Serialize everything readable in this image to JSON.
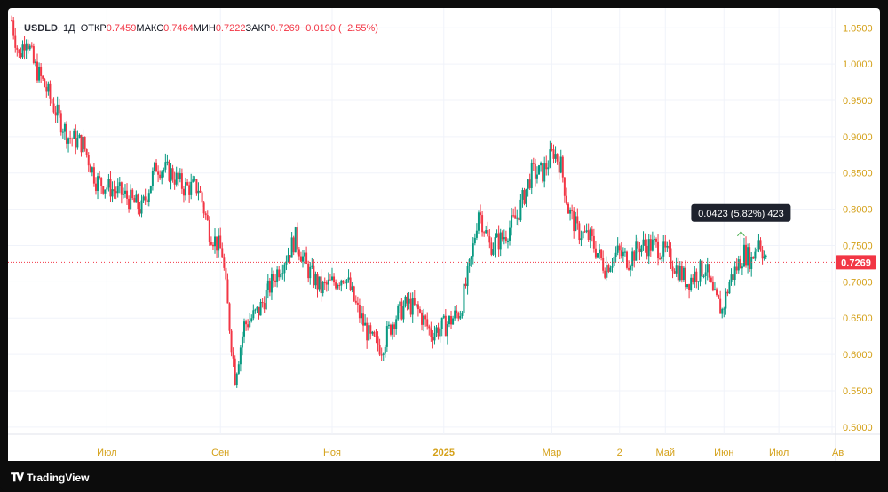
{
  "header": {
    "symbol": "USDLD",
    "interval": "1Д",
    "open_label": "ОТКР",
    "open": "0.7459",
    "high_label": "МАКС",
    "high": "0.7464",
    "low_label": "МИН",
    "low": "0.7222",
    "close_label": "ЗАКР",
    "close": "0.7269",
    "change": "−0.0190 (−2.55%)"
  },
  "price_label": "0.7269",
  "measure_label": "0.0423 (5.82%) 423",
  "brand": "TradingView",
  "colors": {
    "up": "#089981",
    "down": "#f23645",
    "axis_text": "#d4a017",
    "measure": "#4caf50"
  },
  "chart_data": {
    "type": "candlestick",
    "y_ticks": [
      "0.5000",
      "0.5500",
      "0.6000",
      "0.6500",
      "0.7000",
      "0.7500",
      "0.8000",
      "0.8500",
      "0.9000",
      "0.9500",
      "1.0000",
      "1.0500"
    ],
    "ylim": [
      0.49,
      1.065
    ],
    "x_ticks": [
      "Июл",
      "Сен",
      "Ноя",
      "2025",
      "Мар",
      "2",
      "Май",
      "Июн",
      "Июл",
      "Ав"
    ],
    "current_price": 0.7269,
    "measure": {
      "from": 0.7269,
      "to": 0.7692,
      "change": 0.0423,
      "percent": 5.82,
      "bars": 423
    },
    "series_points": [
      {
        "date": "2024-05-10",
        "price": 1.06
      },
      {
        "date": "2024-05-14",
        "price": 1.01
      },
      {
        "date": "2024-05-18",
        "price": 1.04
      },
      {
        "date": "2024-05-22",
        "price": 1.0
      },
      {
        "date": "2024-05-28",
        "price": 0.97
      },
      {
        "date": "2024-06-04",
        "price": 0.93
      },
      {
        "date": "2024-06-10",
        "price": 0.9
      },
      {
        "date": "2024-06-18",
        "price": 0.89
      },
      {
        "date": "2024-06-25",
        "price": 0.84
      },
      {
        "date": "2024-07-02",
        "price": 0.83
      },
      {
        "date": "2024-07-10",
        "price": 0.82
      },
      {
        "date": "2024-07-20",
        "price": 0.8
      },
      {
        "date": "2024-07-28",
        "price": 0.86
      },
      {
        "date": "2024-08-05",
        "price": 0.85
      },
      {
        "date": "2024-08-12",
        "price": 0.83
      },
      {
        "date": "2024-08-20",
        "price": 0.83
      },
      {
        "date": "2024-08-26",
        "price": 0.77
      },
      {
        "date": "2024-09-02",
        "price": 0.74
      },
      {
        "date": "2024-09-06",
        "price": 0.64
      },
      {
        "date": "2024-09-09",
        "price": 0.57
      },
      {
        "date": "2024-09-14",
        "price": 0.64
      },
      {
        "date": "2024-09-22",
        "price": 0.66
      },
      {
        "date": "2024-10-01",
        "price": 0.71
      },
      {
        "date": "2024-10-08",
        "price": 0.74
      },
      {
        "date": "2024-10-12",
        "price": 0.76
      },
      {
        "date": "2024-10-18",
        "price": 0.72
      },
      {
        "date": "2024-10-26",
        "price": 0.69
      },
      {
        "date": "2024-11-02",
        "price": 0.7
      },
      {
        "date": "2024-11-08",
        "price": 0.71
      },
      {
        "date": "2024-11-15",
        "price": 0.66
      },
      {
        "date": "2024-11-22",
        "price": 0.62
      },
      {
        "date": "2024-11-28",
        "price": 0.61
      },
      {
        "date": "2024-12-05",
        "price": 0.65
      },
      {
        "date": "2024-12-12",
        "price": 0.67
      },
      {
        "date": "2024-12-18",
        "price": 0.66
      },
      {
        "date": "2024-12-25",
        "price": 0.63
      },
      {
        "date": "2025-01-02",
        "price": 0.64
      },
      {
        "date": "2025-01-10",
        "price": 0.66
      },
      {
        "date": "2025-01-16",
        "price": 0.73
      },
      {
        "date": "2025-01-20",
        "price": 0.8
      },
      {
        "date": "2025-01-26",
        "price": 0.75
      },
      {
        "date": "2025-02-02",
        "price": 0.76
      },
      {
        "date": "2025-02-10",
        "price": 0.79
      },
      {
        "date": "2025-02-18",
        "price": 0.85
      },
      {
        "date": "2025-02-24",
        "price": 0.85
      },
      {
        "date": "2025-03-02",
        "price": 0.88
      },
      {
        "date": "2025-03-06",
        "price": 0.86
      },
      {
        "date": "2025-03-10",
        "price": 0.8
      },
      {
        "date": "2025-03-15",
        "price": 0.77
      },
      {
        "date": "2025-03-22",
        "price": 0.76
      },
      {
        "date": "2025-03-26",
        "price": 0.74
      },
      {
        "date": "2025-03-30",
        "price": 0.72
      },
      {
        "date": "2025-04-06",
        "price": 0.74
      },
      {
        "date": "2025-04-12",
        "price": 0.73
      },
      {
        "date": "2025-04-18",
        "price": 0.75
      },
      {
        "date": "2025-04-26",
        "price": 0.75
      },
      {
        "date": "2025-05-02",
        "price": 0.74
      },
      {
        "date": "2025-05-08",
        "price": 0.72
      },
      {
        "date": "2025-05-14",
        "price": 0.7
      },
      {
        "date": "2025-05-18",
        "price": 0.71
      },
      {
        "date": "2025-05-24",
        "price": 0.72
      },
      {
        "date": "2025-05-28",
        "price": 0.68
      },
      {
        "date": "2025-06-02",
        "price": 0.66
      },
      {
        "date": "2025-06-06",
        "price": 0.7
      },
      {
        "date": "2025-06-10",
        "price": 0.72
      },
      {
        "date": "2025-06-14",
        "price": 0.74
      },
      {
        "date": "2025-06-18",
        "price": 0.73
      },
      {
        "date": "2025-06-22",
        "price": 0.76
      },
      {
        "date": "2025-06-26",
        "price": 0.7269
      }
    ]
  }
}
